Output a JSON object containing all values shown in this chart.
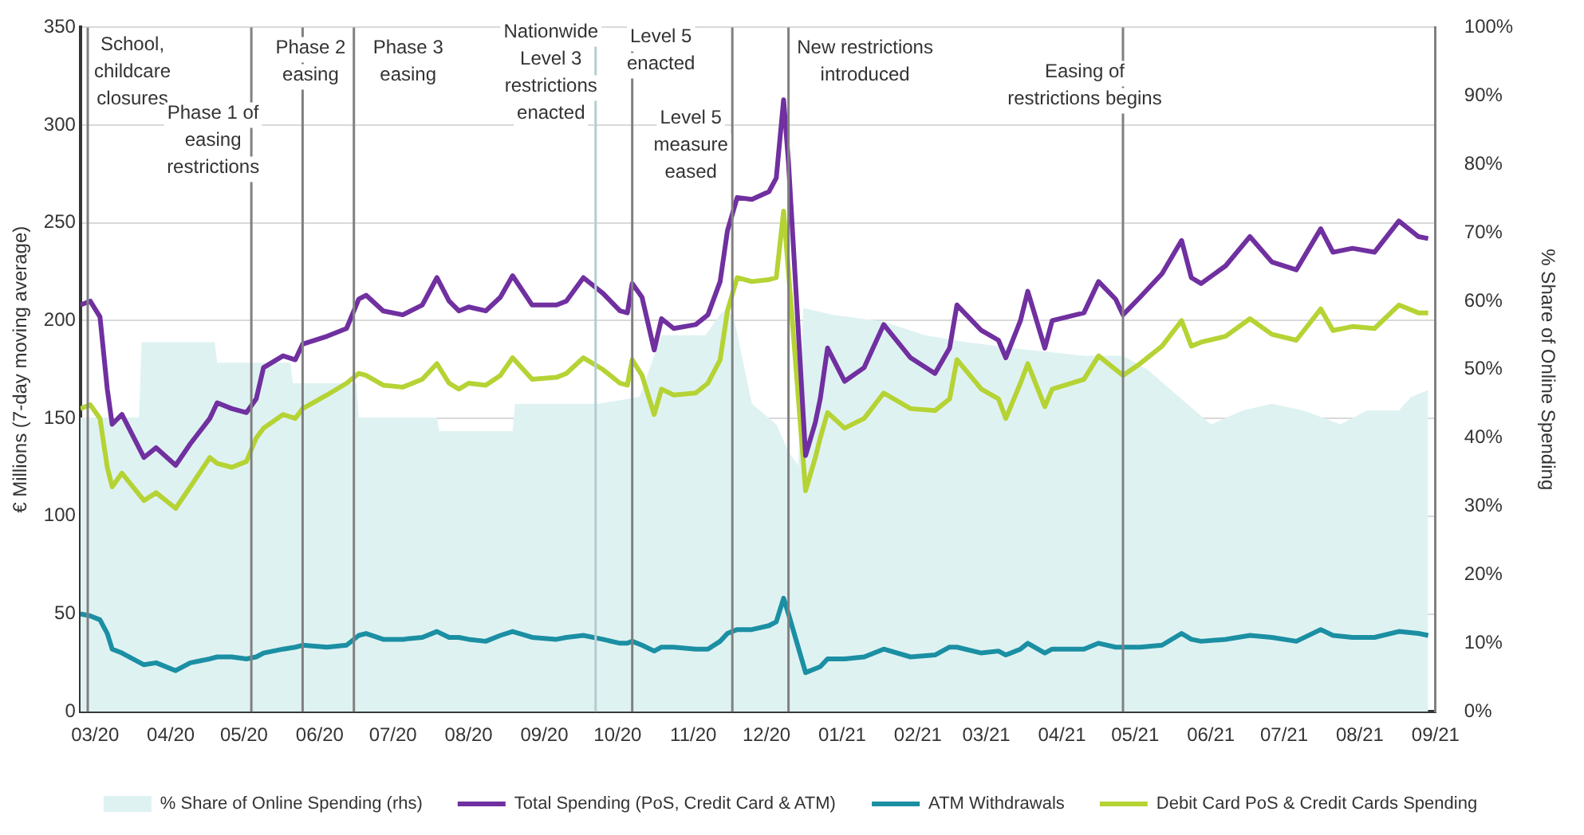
{
  "chart_data": {
    "type": "line",
    "ylabel": "€ Millions (7-day moving average)",
    "y2label": "% Share of Online Spending",
    "x": [
      "2020-03-09",
      "2020-03-13",
      "2020-03-17",
      "2020-03-20",
      "2020-03-22",
      "2020-03-26",
      "2020-04-04",
      "2020-04-09",
      "2020-04-17",
      "2020-04-23",
      "2020-05-01",
      "2020-05-04",
      "2020-05-10",
      "2020-05-16",
      "2020-05-20",
      "2020-05-23",
      "2020-05-31",
      "2020-06-05",
      "2020-06-08",
      "2020-06-18",
      "2020-06-26",
      "2020-07-01",
      "2020-07-04",
      "2020-07-11",
      "2020-07-19",
      "2020-07-27",
      "2020-08-02",
      "2020-08-07",
      "2020-08-11",
      "2020-08-15",
      "2020-08-22",
      "2020-08-28",
      "2020-09-02",
      "2020-09-10",
      "2020-09-20",
      "2020-09-24",
      "2020-10-01",
      "2020-10-09",
      "2020-10-16",
      "2020-10-19",
      "2020-10-21",
      "2020-10-25",
      "2020-10-30",
      "2020-11-02",
      "2020-11-07",
      "2020-11-16",
      "2020-11-21",
      "2020-11-26",
      "2020-11-29",
      "2020-12-03",
      "2020-12-09",
      "2020-12-16",
      "2020-12-19",
      "2020-12-22",
      "2020-12-24",
      "2020-12-31",
      "2021-01-04",
      "2021-01-06",
      "2021-01-09",
      "2021-01-16",
      "2021-01-24",
      "2021-02-01",
      "2021-02-12",
      "2021-02-22",
      "2021-02-28",
      "2021-03-03",
      "2021-03-13",
      "2021-03-20",
      "2021-03-23",
      "2021-03-29",
      "2021-04-01",
      "2021-04-08",
      "2021-04-11",
      "2021-04-24",
      "2021-04-30",
      "2021-05-07",
      "2021-05-10",
      "2021-05-17",
      "2021-05-26",
      "2021-06-03",
      "2021-06-07",
      "2021-06-11",
      "2021-06-21",
      "2021-07-01",
      "2021-07-10",
      "2021-07-20",
      "2021-07-30",
      "2021-08-04",
      "2021-08-12",
      "2021-08-21",
      "2021-08-31",
      "2021-09-08",
      "2021-09-12"
    ],
    "series": [
      {
        "name": "% Share of Online Spending (rhs)",
        "type": "area",
        "axis": "y2",
        "color": "#dff2f2",
        "x": [
          "2020-03-09",
          "2020-04-02",
          "2020-04-03",
          "2020-05-03",
          "2020-05-04",
          "2020-06-03",
          "2020-06-04",
          "2020-06-30",
          "2020-07-01",
          "2020-08-02",
          "2020-08-03",
          "2020-09-02",
          "2020-09-03",
          "2020-10-07",
          "2020-10-24",
          "2020-11-02",
          "2020-11-20",
          "2020-11-26",
          "2020-11-29",
          "2020-12-02",
          "2020-12-09",
          "2020-12-19",
          "2020-12-24",
          "2020-12-28",
          "2020-12-30",
          "2021-01-11",
          "2021-02-01",
          "2021-02-18",
          "2021-03-07",
          "2021-03-29",
          "2021-04-24",
          "2021-05-10",
          "2021-05-20",
          "2021-06-02",
          "2021-06-15",
          "2021-06-28",
          "2021-07-10",
          "2021-07-23",
          "2021-08-07",
          "2021-08-18",
          "2021-08-31",
          "2021-09-05",
          "2021-09-12"
        ],
        "values": [
          43,
          43,
          54,
          54,
          51,
          51,
          48,
          48,
          43,
          43,
          41,
          41,
          45,
          45,
          46,
          55,
          55,
          58,
          59,
          57,
          45,
          42,
          38,
          36,
          59,
          58,
          57,
          55,
          54,
          53,
          52,
          52,
          50,
          46,
          42,
          44,
          45,
          44,
          42,
          44,
          44,
          46,
          47
        ]
      },
      {
        "name": "Total Spending (PoS, Credit Card & ATM)",
        "color": "#7030a0",
        "values": [
          208,
          210,
          202,
          165,
          147,
          152,
          130,
          135,
          126,
          137,
          150,
          158,
          155,
          153,
          160,
          176,
          182,
          180,
          188,
          192,
          196,
          211,
          213,
          205,
          203,
          208,
          222,
          210,
          205,
          207,
          205,
          212,
          223,
          208,
          208,
          210,
          222,
          214,
          205,
          204,
          219,
          212,
          185,
          201,
          196,
          198,
          203,
          220,
          246,
          263,
          262,
          266,
          273,
          313,
          281,
          131,
          148,
          160,
          186,
          169,
          176,
          198,
          181,
          173,
          186,
          208,
          195,
          190,
          181,
          200,
          215,
          186,
          200,
          204,
          220,
          211,
          203,
          212,
          224,
          241,
          222,
          219,
          228,
          243,
          230,
          226,
          247,
          235,
          237,
          235,
          251,
          243,
          242
        ]
      },
      {
        "name": "ATM Withdrawals",
        "color": "#1b8fa3",
        "values": [
          50,
          49,
          47,
          40,
          32,
          30,
          24,
          25,
          21,
          25,
          27,
          28,
          28,
          27,
          28,
          30,
          32,
          33,
          34,
          33,
          34,
          39,
          40,
          37,
          37,
          38,
          41,
          38,
          38,
          37,
          36,
          39,
          41,
          38,
          37,
          38,
          39,
          37,
          35,
          35,
          36,
          34,
          31,
          33,
          33,
          32,
          32,
          36,
          40,
          42,
          42,
          44,
          46,
          58,
          50,
          20,
          22,
          23,
          27,
          27,
          28,
          32,
          28,
          29,
          33,
          33,
          30,
          31,
          29,
          32,
          35,
          30,
          32,
          32,
          35,
          33,
          33,
          33,
          34,
          40,
          37,
          36,
          37,
          39,
          38,
          36,
          42,
          39,
          38,
          38,
          41,
          40,
          39
        ]
      },
      {
        "name": "Debit Card PoS & Credit Cards Spending",
        "color": "#b5d334",
        "values": [
          155,
          157,
          150,
          125,
          115,
          122,
          108,
          112,
          104,
          115,
          130,
          127,
          125,
          128,
          140,
          145,
          152,
          150,
          155,
          162,
          168,
          173,
          172,
          167,
          166,
          170,
          178,
          168,
          165,
          168,
          167,
          172,
          181,
          170,
          171,
          173,
          181,
          175,
          168,
          167,
          180,
          172,
          152,
          165,
          162,
          163,
          168,
          180,
          205,
          222,
          220,
          221,
          222,
          256,
          225,
          113,
          130,
          140,
          153,
          145,
          150,
          163,
          155,
          154,
          160,
          180,
          165,
          160,
          150,
          168,
          178,
          156,
          165,
          170,
          182,
          175,
          172,
          178,
          187,
          200,
          187,
          189,
          192,
          201,
          193,
          190,
          206,
          195,
          197,
          196,
          208,
          204,
          204
        ]
      }
    ],
    "xlim": [
      "2020-03-09",
      "2021-09-15"
    ],
    "xticks": [
      {
        "value": "2020-03-15",
        "label": "03/20"
      },
      {
        "value": "2020-04-15",
        "label": "04/20"
      },
      {
        "value": "2020-05-15",
        "label": "05/20"
      },
      {
        "value": "2020-06-15",
        "label": "06/20"
      },
      {
        "value": "2020-07-15",
        "label": "07/20"
      },
      {
        "value": "2020-08-15",
        "label": "08/20"
      },
      {
        "value": "2020-09-15",
        "label": "09/20"
      },
      {
        "value": "2020-10-15",
        "label": "10/20"
      },
      {
        "value": "2020-11-15",
        "label": "11/20"
      },
      {
        "value": "2020-12-15",
        "label": "12/20"
      },
      {
        "value": "2021-01-15",
        "label": "01/21"
      },
      {
        "value": "2021-02-15",
        "label": "02/21"
      },
      {
        "value": "2021-03-15",
        "label": "03/21"
      },
      {
        "value": "2021-04-15",
        "label": "04/21"
      },
      {
        "value": "2021-05-15",
        "label": "05/21"
      },
      {
        "value": "2021-06-15",
        "label": "06/21"
      },
      {
        "value": "2021-07-15",
        "label": "07/21"
      },
      {
        "value": "2021-08-15",
        "label": "08/21"
      },
      {
        "value": "2021-09-15",
        "label": "09/21"
      }
    ],
    "ylim": [
      0,
      350
    ],
    "yticks": [
      0,
      50,
      100,
      150,
      200,
      250,
      300,
      350
    ],
    "y2lim": [
      0,
      100
    ],
    "y2ticks": [
      {
        "value": 0,
        "label": "0%"
      },
      {
        "value": 10,
        "label": "10%"
      },
      {
        "value": 20,
        "label": "20%"
      },
      {
        "value": 30,
        "label": "30%"
      },
      {
        "value": 40,
        "label": "40%"
      },
      {
        "value": 50,
        "label": "50%"
      },
      {
        "value": 60,
        "label": "60%"
      },
      {
        "value": 70,
        "label": "70%"
      },
      {
        "value": 80,
        "label": "80%"
      },
      {
        "value": 90,
        "label": "90%"
      },
      {
        "value": 100,
        "label": "100%"
      }
    ],
    "ref_lines": [
      {
        "axis": "x",
        "value": "2020-03-12",
        "label": "School, childcare closures",
        "color": "#808080"
      },
      {
        "axis": "x",
        "value": "2020-05-18",
        "label": "Phase 1 of easing restrictions",
        "color": "#808080"
      },
      {
        "axis": "x",
        "value": "2020-06-08",
        "label": "Phase 2 easing",
        "color": "#808080"
      },
      {
        "axis": "x",
        "value": "2020-06-29",
        "label": "Phase 3 easing",
        "color": "#808080"
      },
      {
        "axis": "x",
        "value": "2020-10-06",
        "label": "Nationwide Level 3 restrictions enacted",
        "color": "#b4cdd1"
      },
      {
        "axis": "x",
        "value": "2020-10-21",
        "label": "Level 5 enacted",
        "color": "#808080"
      },
      {
        "axis": "x",
        "value": "2020-12-01",
        "label": "Level 5 measure eased",
        "color": "#808080"
      },
      {
        "axis": "x",
        "value": "2020-12-24",
        "label": "New restrictions introduced",
        "color": "#808080"
      },
      {
        "axis": "x",
        "value": "2021-05-10",
        "label": "Easing of restrictions begins",
        "color": "#808080"
      }
    ],
    "grid": "y",
    "legend": "bottom",
    "marker": "none",
    "line_style": "solid"
  }
}
